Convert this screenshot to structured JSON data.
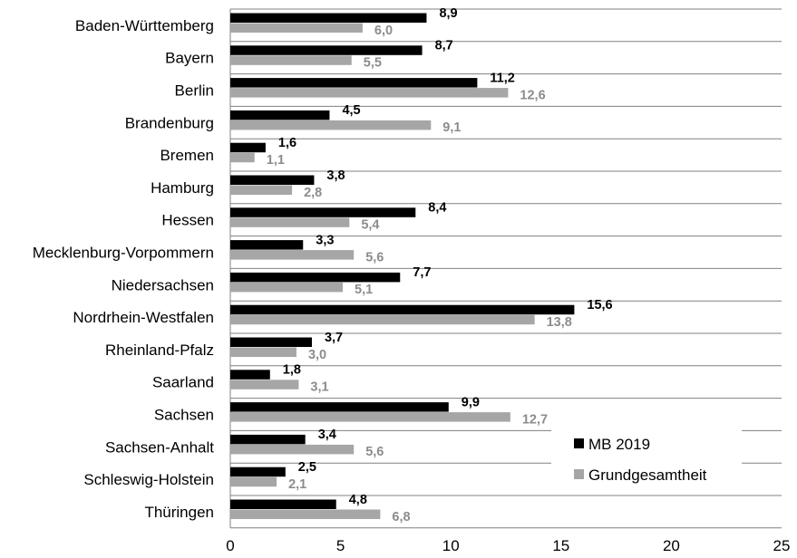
{
  "chart_data": {
    "type": "bar",
    "orientation": "horizontal",
    "categories": [
      "Baden-Württemberg",
      "Bayern",
      "Berlin",
      "Brandenburg",
      "Bremen",
      "Hamburg",
      "Hessen",
      "Mecklenburg-Vorpommern",
      "Niedersachsen",
      "Nordrhein-Westfalen",
      "Rheinland-Pfalz",
      "Saarland",
      "Sachsen",
      "Sachsen-Anhalt",
      "Schleswig-Holstein",
      "Thüringen"
    ],
    "series": [
      {
        "name": "MB 2019",
        "color": "#000000",
        "values": [
          8.9,
          8.7,
          11.2,
          4.5,
          1.6,
          3.8,
          8.4,
          3.3,
          7.7,
          15.6,
          3.7,
          1.8,
          9.9,
          3.4,
          2.5,
          4.8
        ],
        "labels": [
          "8,9",
          "8,7",
          "11,2",
          "4,5",
          "1,6",
          "3,8",
          "8,4",
          "3,3",
          "7,7",
          "15,6",
          "3,7",
          "1,8",
          "9,9",
          "3,4",
          "2,5",
          "4,8"
        ]
      },
      {
        "name": "Grundgesamtheit",
        "color": "#a6a6a6",
        "label_color": "#8c8c8c",
        "values": [
          6.0,
          5.5,
          12.6,
          9.1,
          1.1,
          2.8,
          5.4,
          5.6,
          5.1,
          13.8,
          3.0,
          3.1,
          12.7,
          5.6,
          2.1,
          6.8
        ],
        "labels": [
          "6,0",
          "5,5",
          "12,6",
          "9,1",
          "1,1",
          "2,8",
          "5,4",
          "5,6",
          "5,1",
          "13,8",
          "3,0",
          "3,1",
          "12,7",
          "5,6",
          "2,1",
          "6,8"
        ]
      }
    ],
    "xlim": [
      0,
      25
    ],
    "xticks": [
      0,
      5,
      10,
      15,
      20,
      25
    ],
    "xtick_labels": [
      "0",
      "5",
      "10",
      "15",
      "20",
      "25"
    ],
    "grid": "horizontal category separators",
    "legend": {
      "position": "right-bottom-inside"
    },
    "title": "",
    "xlabel": "",
    "ylabel": ""
  }
}
